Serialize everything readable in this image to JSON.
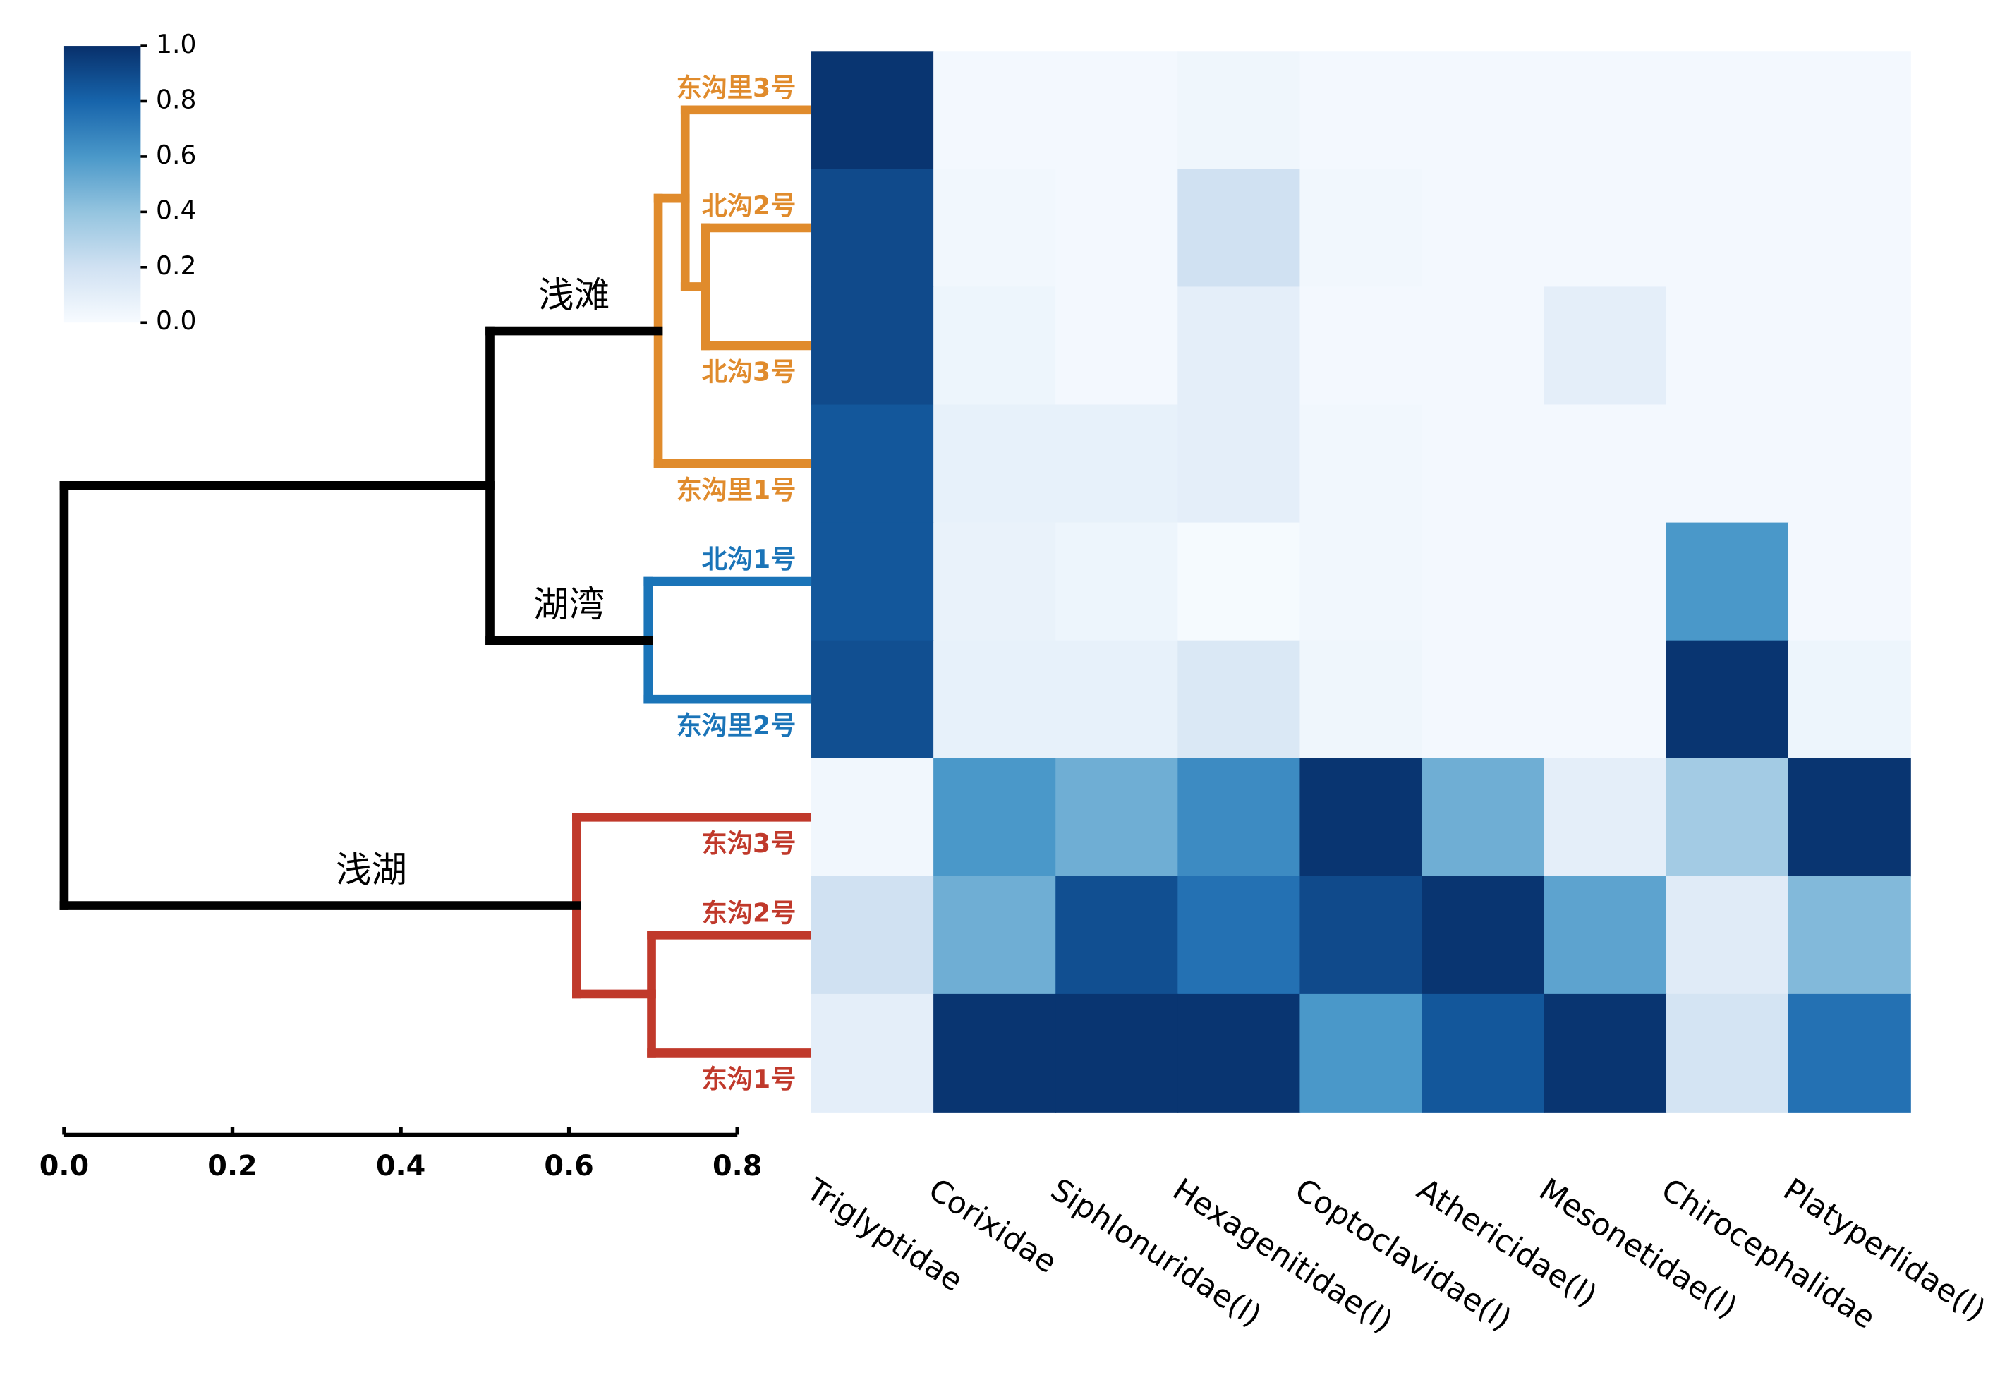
{
  "chart_data": {
    "type": "heatmap",
    "rows": [
      "东沟里3号",
      "北沟2号",
      "北沟3号",
      "东沟里1号",
      "北沟1号",
      "东沟里2号",
      "东沟3号",
      "东沟2号",
      "东沟1号"
    ],
    "columns": [
      "Triglyptidae",
      "Corixidae",
      "Siphlonuridae(l)",
      "Hexagenitidae(l)",
      "Coptoclavidae(l)",
      "Athericidae(l)",
      "Mesonetidae(l)",
      "Chirocephalidae",
      "Platyperlidae(l)"
    ],
    "values": [
      [
        0.98,
        0.02,
        0.02,
        0.04,
        0.02,
        0.02,
        0.02,
        0.02,
        0.02
      ],
      [
        0.9,
        0.03,
        0.02,
        0.2,
        0.03,
        0.02,
        0.02,
        0.02,
        0.02
      ],
      [
        0.9,
        0.05,
        0.02,
        0.1,
        0.02,
        0.02,
        0.1,
        0.02,
        0.02
      ],
      [
        0.85,
        0.08,
        0.08,
        0.1,
        0.03,
        0.02,
        0.02,
        0.02,
        0.02
      ],
      [
        0.85,
        0.07,
        0.05,
        0.01,
        0.03,
        0.02,
        0.02,
        0.6,
        0.02
      ],
      [
        0.88,
        0.08,
        0.08,
        0.15,
        0.04,
        0.02,
        0.02,
        0.98,
        0.05
      ],
      [
        0.03,
        0.6,
        0.5,
        0.65,
        0.98,
        0.5,
        0.1,
        0.35,
        0.98
      ],
      [
        0.2,
        0.5,
        0.88,
        0.75,
        0.9,
        0.98,
        0.55,
        0.12,
        0.45
      ],
      [
        0.1,
        0.98,
        0.98,
        0.98,
        0.6,
        0.85,
        0.98,
        0.18,
        0.75
      ]
    ],
    "colorscale": [
      "#f7fbff",
      "#d0e1f2",
      "#94c4df",
      "#4a98c9",
      "#1764ab",
      "#08306b"
    ],
    "clim": [
      0,
      1
    ],
    "cticks": [
      {
        "value": 0,
        "label": "0.0"
      },
      0.2,
      0.4,
      0.6,
      0.8,
      {
        "value": 1,
        "label": "1.0"
      }
    ],
    "dendrogram": {
      "xlim": [
        0,
        0.8
      ],
      "xticks": [
        {
          "value": 0,
          "label": "0.0"
        },
        0.2,
        0.4,
        0.6,
        0.8
      ],
      "tree": {
        "x": 0,
        "children": [
          {
            "x": 0.506,
            "children": [
              {
                "label": "浅滩",
                "x": 0.706,
                "color": "#e08b2c",
                "children": [
                  {
                    "x": 0.738,
                    "children": [
                      {
                        "row": 0
                      },
                      {
                        "x": 0.762,
                        "children": [
                          {
                            "row": 1
                          },
                          {
                            "row": 2
                          }
                        ]
                      }
                    ]
                  },
                  {
                    "row": 3
                  }
                ]
              },
              {
                "label": "湖湾",
                "x": 0.694,
                "color": "#1a74b8",
                "children": [
                  {
                    "row": 4
                  },
                  {
                    "row": 5
                  }
                ]
              }
            ]
          },
          {
            "label": "浅湖",
            "x": 0.609,
            "color": "#c0392b",
            "children": [
              {
                "row": 6
              },
              {
                "x": 0.698,
                "children": [
                  {
                    "row": 7
                  },
                  {
                    "row": 8
                  }
                ]
              }
            ]
          }
        ]
      }
    }
  }
}
